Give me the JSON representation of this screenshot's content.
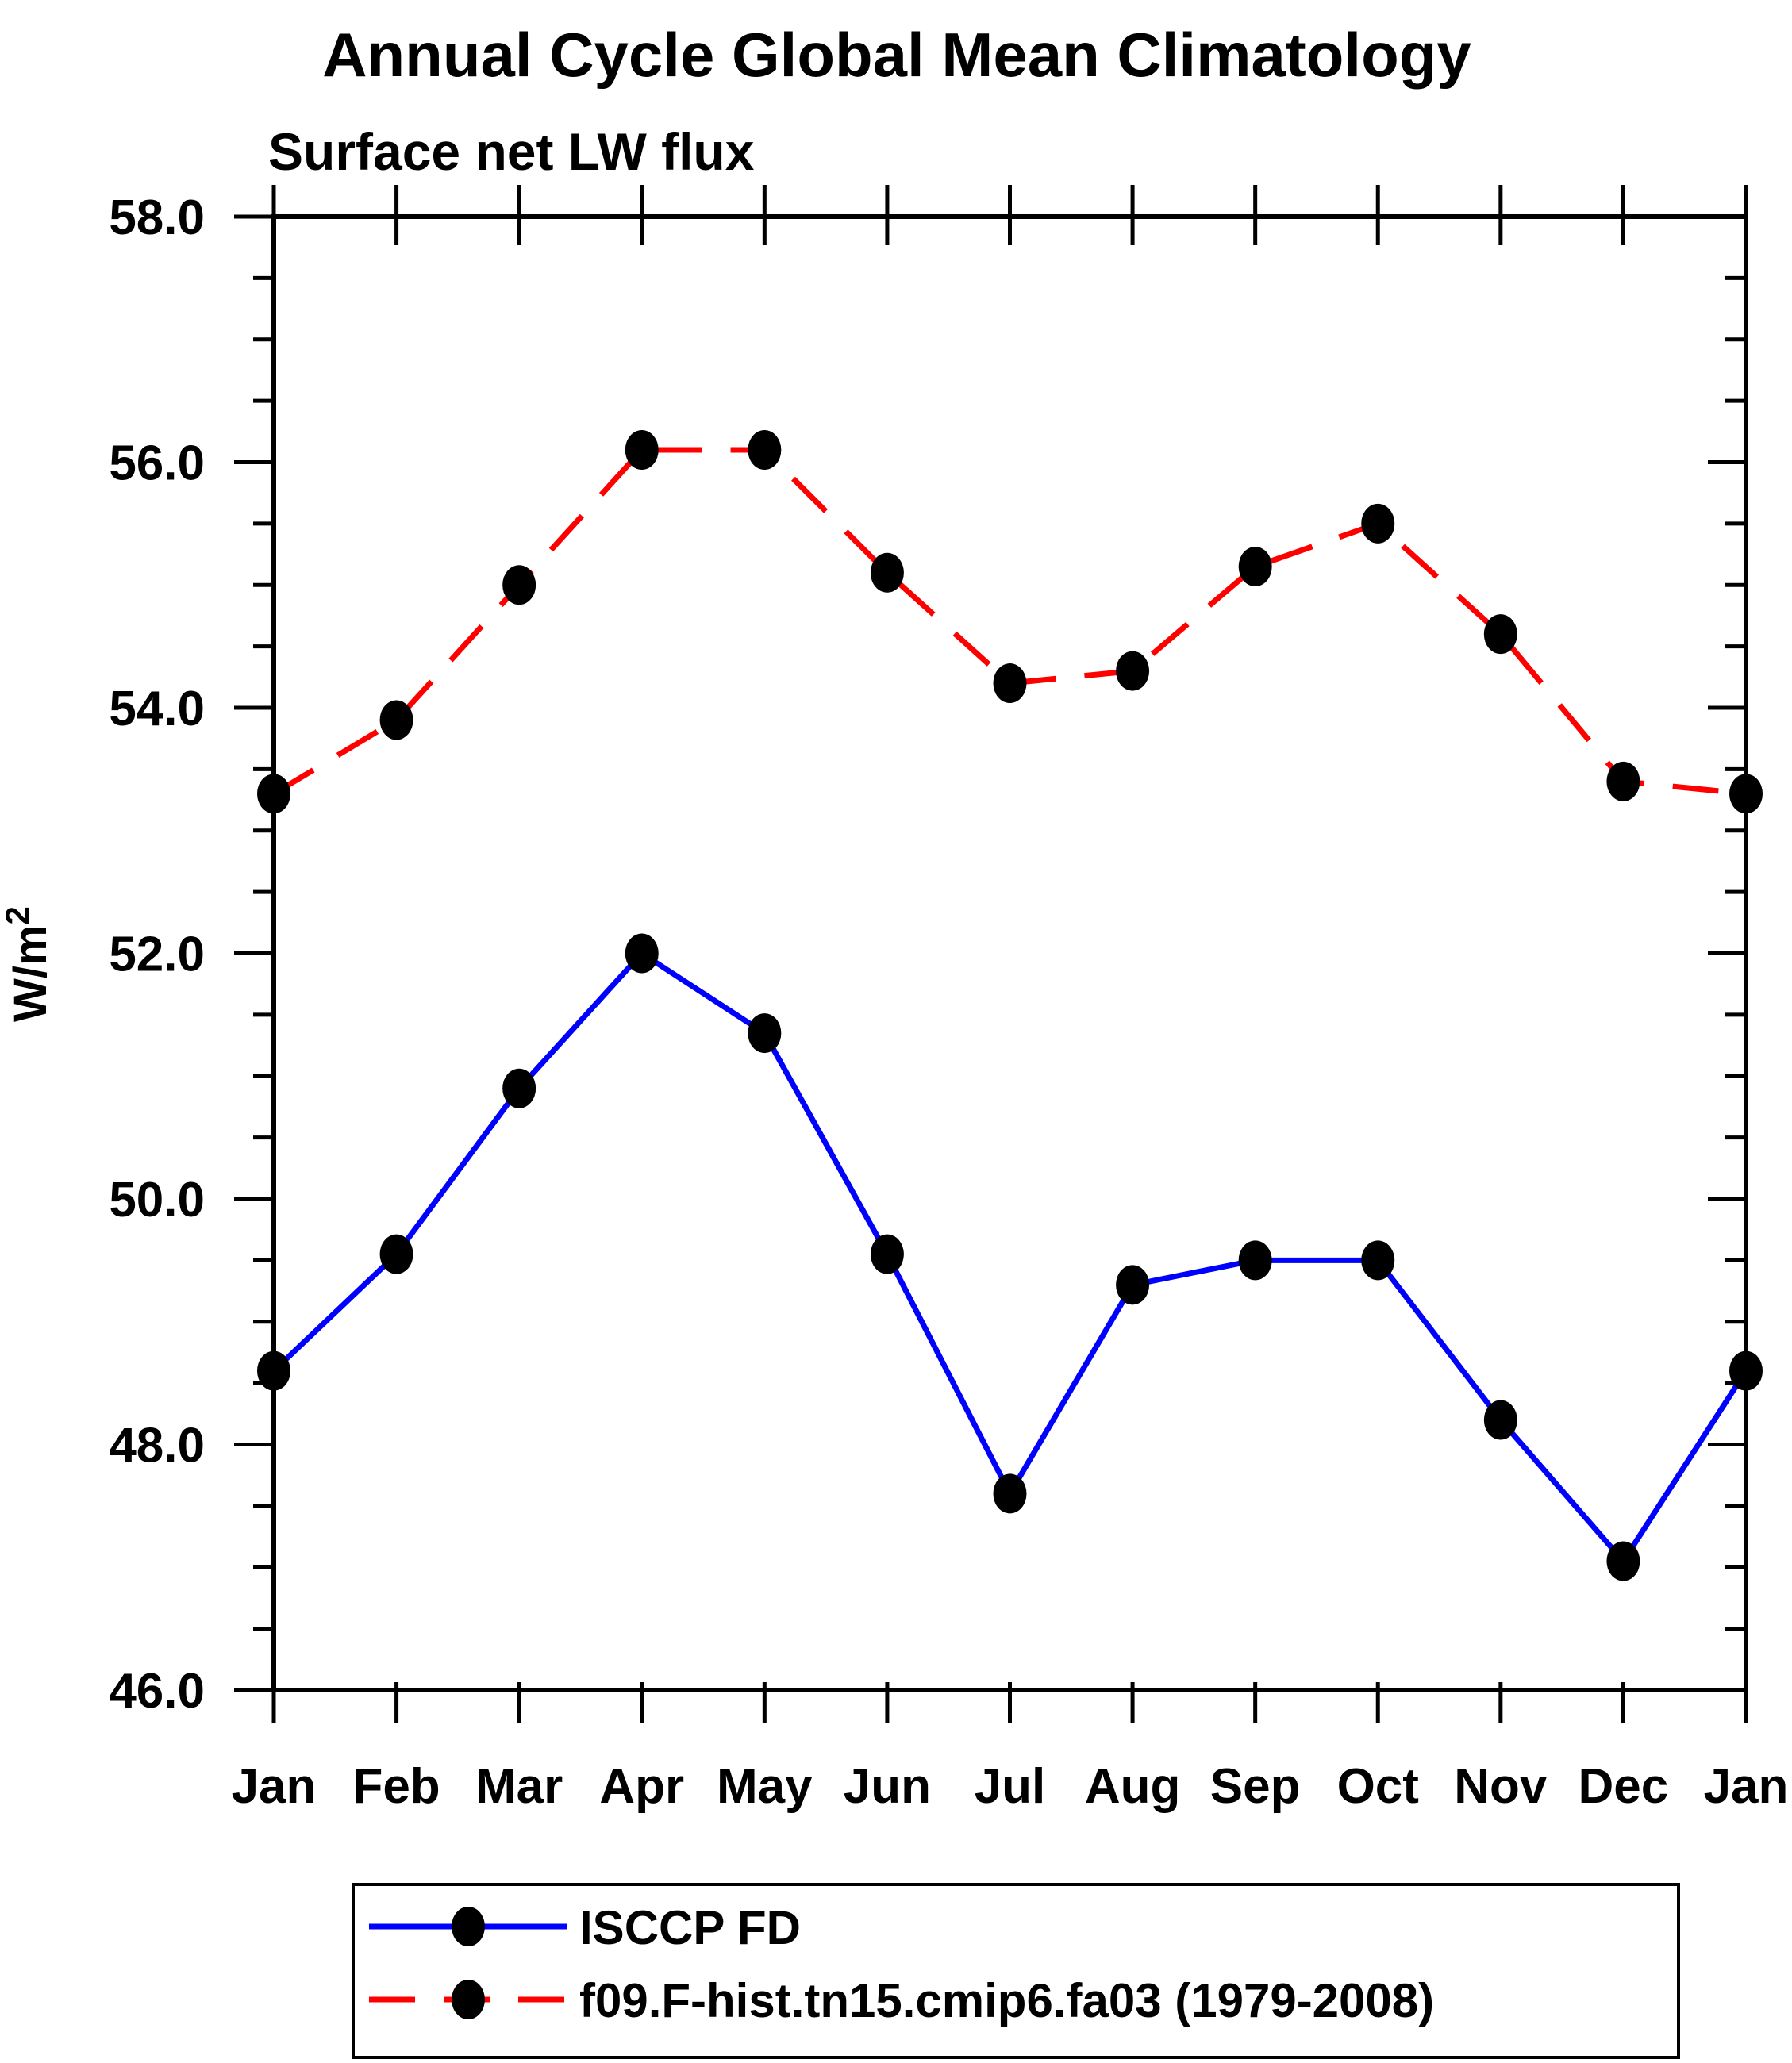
{
  "chart_data": {
    "type": "line",
    "title": "Annual Cycle Global Mean Climatology",
    "subtitle": "Surface net LW flux",
    "ylabel_base": "W/m",
    "ylabel_exponent": "2",
    "categories": [
      "Jan",
      "Feb",
      "Mar",
      "Apr",
      "May",
      "Jun",
      "Jul",
      "Aug",
      "Sep",
      "Oct",
      "Nov",
      "Dec",
      "Jan"
    ],
    "y_tick_labels": [
      "58.0",
      "56.0",
      "54.0",
      "52.0",
      "50.0",
      "48.0",
      "46.0"
    ],
    "ylim": [
      46.0,
      58.0
    ],
    "major_tick_interval": 2.0,
    "minor_tick_interval": 0.5,
    "grid": "off",
    "legend_position": "bottom",
    "axis_color": "#000000",
    "marker_color": "#000000",
    "series": [
      {
        "name": "ISCCP FD",
        "color": "#0000ff",
        "line_style": "solid",
        "marker": "filled-dot",
        "values": [
          48.6,
          49.55,
          50.9,
          52.0,
          51.35,
          49.55,
          47.6,
          49.3,
          49.5,
          49.5,
          48.2,
          47.05,
          48.6
        ]
      },
      {
        "name": "f09.F-hist.tn15.cmip6.fa03 (1979-2008)",
        "color": "#ff0000",
        "line_style": "dashed",
        "marker": "filled-dot",
        "values": [
          53.3,
          53.9,
          55.0,
          56.1,
          56.1,
          55.1,
          54.2,
          54.3,
          55.15,
          55.5,
          54.6,
          53.4,
          53.3
        ]
      }
    ]
  }
}
